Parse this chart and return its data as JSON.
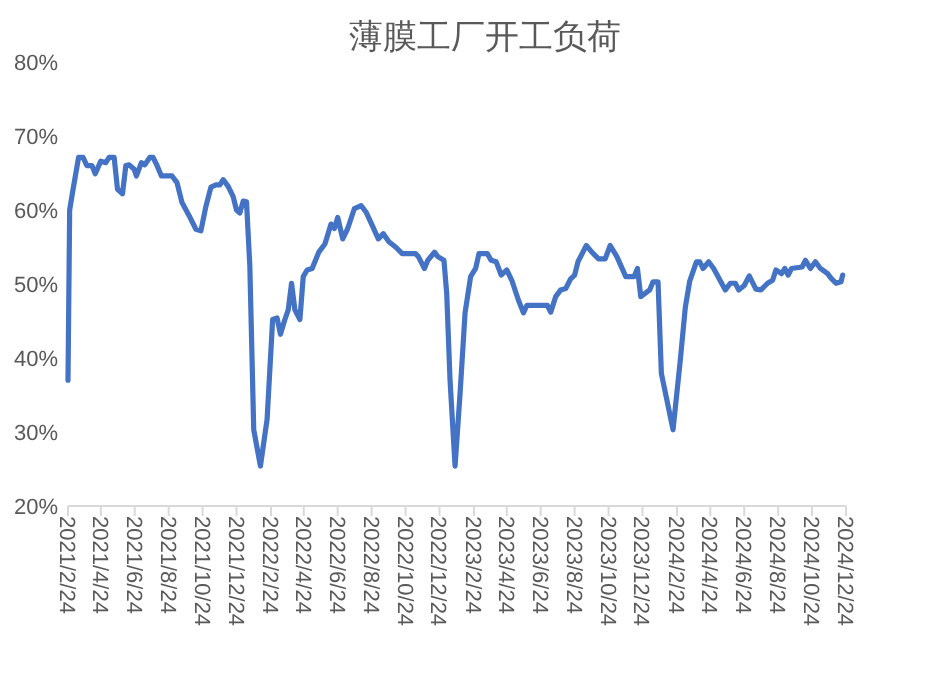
{
  "chart_data": {
    "type": "line",
    "title": "薄膜工厂开工负荷",
    "x": [
      "2021-02-24",
      "2021-02-27",
      "2021-03-04",
      "2021-03-15",
      "2021-03-23",
      "2021-03-30",
      "2021-04-08",
      "2021-04-14",
      "2021-04-24",
      "2021-05-03",
      "2021-05-09",
      "2021-05-18",
      "2021-05-24",
      "2021-06-02",
      "2021-06-08",
      "2021-06-14",
      "2021-06-23",
      "2021-06-27",
      "2021-07-06",
      "2021-07-12",
      "2021-07-21",
      "2021-07-27",
      "2021-08-02",
      "2021-08-11",
      "2021-08-30",
      "2021-09-08",
      "2021-09-17",
      "2021-09-30",
      "2021-10-12",
      "2021-10-21",
      "2021-10-30",
      "2021-11-08",
      "2021-11-17",
      "2021-11-24",
      "2021-11-30",
      "2021-12-09",
      "2021-12-18",
      "2021-12-24",
      "2021-12-30",
      "2022-01-05",
      "2022-01-11",
      "2022-01-17",
      "2022-01-24",
      "2022-02-05",
      "2022-02-17",
      "2022-02-27",
      "2022-03-07",
      "2022-03-13",
      "2022-03-21",
      "2022-03-27",
      "2022-04-02",
      "2022-04-08",
      "2022-04-17",
      "2022-04-23",
      "2022-04-30",
      "2022-05-09",
      "2022-05-21",
      "2022-06-01",
      "2022-06-12",
      "2022-06-18",
      "2022-06-24",
      "2022-07-03",
      "2022-07-12",
      "2022-07-24",
      "2022-08-05",
      "2022-08-14",
      "2022-08-24",
      "2022-09-05",
      "2022-09-14",
      "2022-09-24",
      "2022-10-06",
      "2022-10-18",
      "2022-11-11",
      "2022-11-16",
      "2022-11-27",
      "2022-12-03",
      "2022-12-15",
      "2022-12-21",
      "2023-01-01",
      "2023-01-06",
      "2023-01-12",
      "2023-01-21",
      "2023-01-30",
      "2023-02-08",
      "2023-02-18",
      "2023-02-27",
      "2023-03-05",
      "2023-03-20",
      "2023-03-27",
      "2023-04-05",
      "2023-04-14",
      "2023-04-24",
      "2023-05-03",
      "2023-05-15",
      "2023-05-24",
      "2023-05-30",
      "2023-07-06",
      "2023-07-12",
      "2023-07-21",
      "2023-07-30",
      "2023-08-08",
      "2023-08-17",
      "2023-08-24",
      "2023-08-30",
      "2023-09-14",
      "2023-09-24",
      "2023-10-06",
      "2023-10-18",
      "2023-10-27",
      "2023-11-08",
      "2023-11-24",
      "2023-12-09",
      "2023-12-15",
      "2023-12-21",
      "2024-01-06",
      "2024-01-12",
      "2024-01-21",
      "2024-01-27",
      "2024-02-17",
      "2024-03-01",
      "2024-03-10",
      "2024-03-18",
      "2024-03-30",
      "2024-04-05",
      "2024-04-11",
      "2024-04-21",
      "2024-04-30",
      "2024-05-21",
      "2024-05-30",
      "2024-06-08",
      "2024-06-14",
      "2024-06-24",
      "2024-07-03",
      "2024-07-15",
      "2024-07-24",
      "2024-08-05",
      "2024-08-14",
      "2024-08-20",
      "2024-08-30",
      "2024-09-05",
      "2024-09-11",
      "2024-09-17",
      "2024-10-06",
      "2024-10-12",
      "2024-10-21",
      "2024-10-30",
      "2024-11-08",
      "2024-11-21",
      "2024-11-27",
      "2024-12-06",
      "2024-12-15",
      "2024-12-18"
    ],
    "series": [
      {
        "color": "#4472c4",
        "values": [
          37,
          60,
          62.3,
          67.1,
          67.1,
          66,
          66,
          64.9,
          66.6,
          66.4,
          67.1,
          67.1,
          62.8,
          62.2,
          66,
          66.1,
          65.5,
          64.6,
          66.4,
          66.1,
          67.1,
          67.1,
          66.2,
          64.6,
          64.6,
          63.7,
          61,
          59.2,
          57.4,
          57.2,
          60.5,
          63.1,
          63.4,
          63.4,
          64.1,
          63.2,
          61.8,
          60,
          59.6,
          61.2,
          61.1,
          52.4,
          30.3,
          25.4,
          31.7,
          45.2,
          45.4,
          43.2,
          45.2,
          46.5,
          50.1,
          46.5,
          45.2,
          51,
          51.9,
          52.1,
          54.3,
          55.4,
          58.1,
          57.5,
          59,
          56.1,
          57.5,
          60.2,
          60.6,
          59.7,
          58.1,
          56.1,
          56.8,
          55.7,
          55,
          54.1,
          54.1,
          53.7,
          52.1,
          53.2,
          54.3,
          53.7,
          53.2,
          48.7,
          37,
          25.4,
          35.2,
          46.1,
          51,
          52.1,
          54.1,
          54.1,
          53.2,
          53,
          51.2,
          51.9,
          50.5,
          47.8,
          46.1,
          47.1,
          47.1,
          46.2,
          48.3,
          49.2,
          49.4,
          50.7,
          51.2,
          53,
          55.2,
          54.3,
          53.4,
          53.4,
          55.2,
          53.7,
          51,
          51,
          52.1,
          48.3,
          49.2,
          50.3,
          50.3,
          37.9,
          30.3,
          39.7,
          46.8,
          50.4,
          53,
          53,
          52.1,
          53,
          52.1,
          49.2,
          50.1,
          50.1,
          49.2,
          49.8,
          51.1,
          49.3,
          49.2,
          50.1,
          50.5,
          51.9,
          51.4,
          52.1,
          51.2,
          52.1,
          52.3,
          53.2,
          52.1,
          53,
          52.1,
          51.4,
          50.8,
          50.1,
          50.3,
          51.2
        ]
      }
    ],
    "xlim": [
      "2021-02-24",
      "2024-12-24"
    ],
    "xticks": [
      {
        "value": "2021-02-24",
        "label": "2021/2/24"
      },
      {
        "value": "2021-04-24",
        "label": "2021/4/24"
      },
      {
        "value": "2021-06-24",
        "label": "2021/6/24"
      },
      {
        "value": "2021-08-24",
        "label": "2021/8/24"
      },
      {
        "value": "2021-10-24",
        "label": "2021/10/24"
      },
      {
        "value": "2021-12-24",
        "label": "2021/12/24"
      },
      {
        "value": "2022-02-24",
        "label": "2022/2/24"
      },
      {
        "value": "2022-04-24",
        "label": "2022/4/24"
      },
      {
        "value": "2022-06-24",
        "label": "2022/6/24"
      },
      {
        "value": "2022-08-24",
        "label": "2022/8/24"
      },
      {
        "value": "2022-10-24",
        "label": "2022/10/24"
      },
      {
        "value": "2022-12-24",
        "label": "2022/12/24"
      },
      {
        "value": "2023-02-24",
        "label": "2023/2/24"
      },
      {
        "value": "2023-04-24",
        "label": "2023/4/24"
      },
      {
        "value": "2023-06-24",
        "label": "2023/6/24"
      },
      {
        "value": "2023-08-24",
        "label": "2023/8/24"
      },
      {
        "value": "2023-10-24",
        "label": "2023/10/24"
      },
      {
        "value": "2023-12-24",
        "label": "2023/12/24"
      },
      {
        "value": "2024-02-24",
        "label": "2024/2/24"
      },
      {
        "value": "2024-04-24",
        "label": "2024/4/24"
      },
      {
        "value": "2024-06-24",
        "label": "2024/6/24"
      },
      {
        "value": "2024-08-24",
        "label": "2024/8/24"
      },
      {
        "value": "2024-10-24",
        "label": "2024/10/24"
      },
      {
        "value": "2024-12-24",
        "label": "2024/12/24"
      }
    ],
    "ylim": [
      20,
      80
    ],
    "yticks": [
      {
        "value": 20,
        "label": "20%"
      },
      {
        "value": 30,
        "label": "30%"
      },
      {
        "value": 40,
        "label": "40%"
      },
      {
        "value": 50,
        "label": "50%"
      },
      {
        "value": 60,
        "label": "60%"
      },
      {
        "value": 70,
        "label": "70%"
      },
      {
        "value": 80,
        "label": "80%"
      }
    ],
    "grid": false,
    "marker": "none",
    "line_style": "solid"
  }
}
